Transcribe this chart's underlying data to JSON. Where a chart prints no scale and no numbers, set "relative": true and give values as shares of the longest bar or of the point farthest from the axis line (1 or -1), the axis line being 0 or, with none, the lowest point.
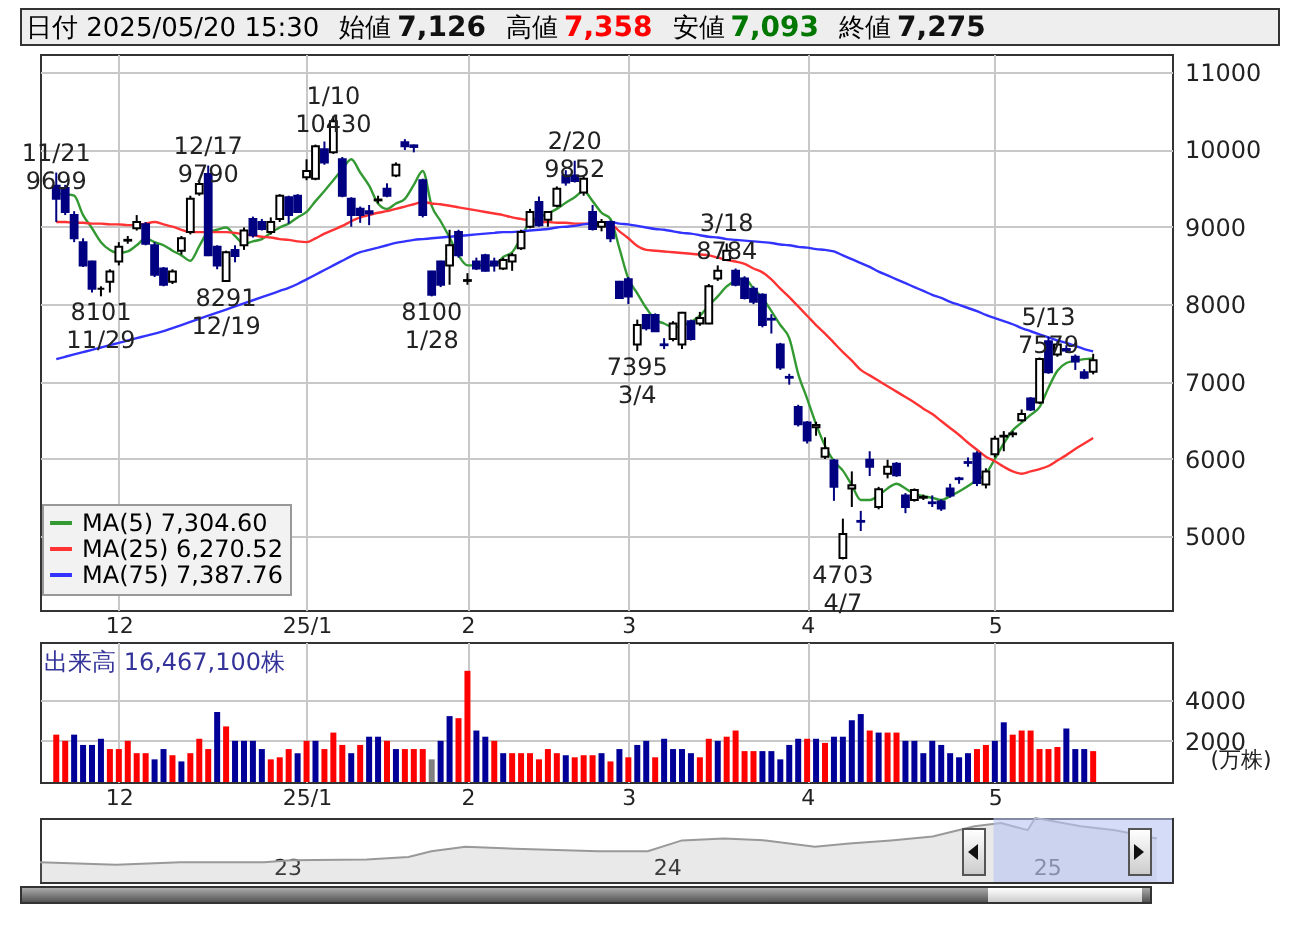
{
  "chart_data": [
    {
      "type": "candlestick",
      "title": "日付 2025/05/20 15:30",
      "annotations": [
        "始値 7,126",
        "高値 7,358",
        "安値 7,093",
        "終値 7,275",
        {
          "text": "11/21\n9699",
          "y": 9699
        },
        {
          "text": "8101\n11/29",
          "y": 8101
        },
        {
          "text": "12/17\n9790",
          "y": 9790
        },
        {
          "text": "8291\n12/19",
          "y": 8291
        },
        {
          "text": "1/10\n10430",
          "y": 10430
        },
        {
          "text": "8100\n1/28",
          "y": 8100
        },
        {
          "text": "2/20\n9852",
          "y": 9852
        },
        {
          "text": "7395\n3/4",
          "y": 7395
        },
        {
          "text": "3/18\n8784",
          "y": 8784
        },
        {
          "text": "4703\n4/7",
          "y": 4703
        },
        {
          "text": "5/13\n7579",
          "y": 7579
        }
      ],
      "categories": [
        null,
        null,
        null,
        null,
        null,
        null,
        null,
        "12",
        null,
        null,
        null,
        null,
        null,
        null,
        null,
        null,
        null,
        null,
        null,
        null,
        null,
        null,
        null,
        null,
        null,
        null,
        null,
        null,
        "25/1",
        null,
        null,
        null,
        null,
        null,
        null,
        null,
        null,
        null,
        null,
        null,
        null,
        null,
        null,
        null,
        null,
        null,
        "2",
        null,
        null,
        null,
        null,
        null,
        null,
        null,
        null,
        null,
        null,
        null,
        null,
        null,
        null,
        null,
        null,
        null,
        "3",
        null,
        null,
        null,
        null,
        null,
        null,
        null,
        null,
        null,
        null,
        null,
        null,
        null,
        null,
        null,
        null,
        null,
        null,
        null,
        "4",
        null,
        null,
        null,
        null,
        null,
        null,
        null,
        null,
        null,
        null,
        null,
        null,
        null,
        null,
        null,
        null,
        null,
        null,
        null,
        null,
        "5",
        null,
        null,
        null,
        null,
        null,
        null,
        null,
        null,
        null,
        null,
        null
      ],
      "ohlc": [
        [
          9530,
          9699,
          9060,
          9360
        ],
        [
          9500,
          9540,
          9150,
          9190
        ],
        [
          9150,
          9200,
          8800,
          8850
        ],
        [
          8800,
          8850,
          8480,
          8500
        ],
        [
          8550,
          8560,
          8150,
          8200
        ],
        [
          8200,
          8230,
          8101,
          8200
        ],
        [
          8290,
          8450,
          8150,
          8420
        ],
        [
          8550,
          8800,
          8500,
          8740
        ],
        [
          8820,
          8880,
          8780,
          8830
        ],
        [
          8980,
          9150,
          8950,
          9060
        ],
        [
          9030,
          9060,
          8760,
          8780
        ],
        [
          8760,
          8800,
          8350,
          8380
        ],
        [
          8460,
          8480,
          8230,
          8250
        ],
        [
          8290,
          8450,
          8260,
          8420
        ],
        [
          8690,
          8880,
          8640,
          8850
        ],
        [
          8930,
          9400,
          8900,
          9360
        ],
        [
          9430,
          9600,
          9400,
          9550
        ],
        [
          9680,
          9790,
          8620,
          8630
        ],
        [
          8740,
          8760,
          8450,
          8500
        ],
        [
          8300,
          8690,
          8291,
          8670
        ],
        [
          8700,
          8760,
          8540,
          8620
        ],
        [
          8760,
          8990,
          8700,
          8950
        ],
        [
          9100,
          9130,
          8860,
          8890
        ],
        [
          9060,
          9100,
          8950,
          8970
        ],
        [
          8930,
          9120,
          8900,
          9060
        ],
        [
          9100,
          9420,
          9060,
          9400
        ],
        [
          9380,
          9400,
          9040,
          9150
        ],
        [
          9400,
          9420,
          9180,
          9190
        ],
        [
          9640,
          9870,
          9600,
          9720
        ],
        [
          9620,
          10060,
          9600,
          10040
        ],
        [
          10000,
          10100,
          9800,
          9830
        ],
        [
          9960,
          10430,
          9940,
          10360
        ],
        [
          9870,
          9900,
          9380,
          9400
        ],
        [
          9360,
          9380,
          9000,
          9150
        ],
        [
          9230,
          9260,
          9050,
          9150
        ],
        [
          9200,
          9280,
          9020,
          9170
        ],
        [
          9340,
          9400,
          9300,
          9350
        ],
        [
          9490,
          9560,
          9380,
          9400
        ],
        [
          9660,
          9830,
          9640,
          9800
        ],
        [
          10090,
          10130,
          9990,
          10040
        ],
        [
          10050,
          10060,
          9960,
          10030
        ],
        [
          9600,
          9620,
          9120,
          9150
        ],
        [
          8420,
          8430,
          8100,
          8120
        ],
        [
          8550,
          8560,
          8220,
          8250
        ],
        [
          8500,
          8960,
          8250,
          8760
        ],
        [
          8930,
          8960,
          8600,
          8630
        ],
        [
          8300,
          8400,
          8250,
          8310
        ],
        [
          8550,
          8600,
          8440,
          8460
        ],
        [
          8630,
          8650,
          8420,
          8430
        ],
        [
          8550,
          8600,
          8420,
          8500
        ],
        [
          8460,
          8600,
          8440,
          8570
        ],
        [
          8550,
          8660,
          8430,
          8630
        ],
        [
          8720,
          8960,
          8700,
          8930
        ],
        [
          9000,
          9230,
          8980,
          9190
        ],
        [
          9320,
          9390,
          9000,
          9020
        ],
        [
          9090,
          9200,
          9000,
          9190
        ],
        [
          9270,
          9520,
          9250,
          9490
        ],
        [
          9660,
          9730,
          9530,
          9570
        ],
        [
          9660,
          9852,
          9570,
          9590
        ],
        [
          9440,
          9650,
          9400,
          9620
        ],
        [
          9190,
          9280,
          8950,
          8970
        ],
        [
          9000,
          9100,
          8940,
          9060
        ],
        [
          9060,
          9080,
          8800,
          8850
        ],
        [
          8290,
          8300,
          8080,
          8080
        ],
        [
          8320,
          8350,
          8000,
          8100
        ],
        [
          7480,
          7800,
          7395,
          7730
        ],
        [
          7860,
          7870,
          7660,
          7690
        ],
        [
          7860,
          7880,
          7640,
          7650
        ],
        [
          7480,
          7560,
          7420,
          7470
        ],
        [
          7550,
          7780,
          7520,
          7750
        ],
        [
          7480,
          7900,
          7420,
          7890
        ],
        [
          7780,
          7800,
          7530,
          7550
        ],
        [
          7750,
          7900,
          7720,
          7820
        ],
        [
          7750,
          8260,
          7740,
          8230
        ],
        [
          8330,
          8500,
          8300,
          8430
        ],
        [
          8570,
          8784,
          8560,
          8690
        ],
        [
          8430,
          8460,
          8230,
          8250
        ],
        [
          8330,
          8360,
          8060,
          8080
        ],
        [
          8200,
          8230,
          8000,
          8030
        ],
        [
          8120,
          8140,
          7700,
          7730
        ],
        [
          7810,
          7870,
          7620,
          7800
        ],
        [
          7480,
          7500,
          7150,
          7180
        ],
        [
          7060,
          7100,
          6960,
          7050
        ],
        [
          6670,
          6700,
          6420,
          6450
        ],
        [
          6470,
          6490,
          6200,
          6240
        ],
        [
          6410,
          6480,
          6300,
          6440
        ],
        [
          6030,
          6280,
          6000,
          6140
        ],
        [
          5980,
          6000,
          5460,
          5640
        ],
        [
          4720,
          5230,
          4703,
          5030
        ],
        [
          5620,
          5840,
          5380,
          5660
        ],
        [
          5200,
          5330,
          5070,
          5190
        ],
        [
          5990,
          6100,
          5780,
          5900
        ],
        [
          5380,
          5640,
          5350,
          5610
        ],
        [
          5810,
          5990,
          5750,
          5900
        ],
        [
          5940,
          5960,
          5770,
          5790
        ],
        [
          5530,
          5560,
          5300,
          5380
        ],
        [
          5470,
          5620,
          5450,
          5600
        ],
        [
          5500,
          5540,
          5470,
          5510
        ],
        [
          5440,
          5530,
          5380,
          5430
        ],
        [
          5450,
          5480,
          5330,
          5360
        ],
        [
          5620,
          5680,
          5500,
          5530
        ],
        [
          5750,
          5770,
          5680,
          5740
        ],
        [
          5960,
          6020,
          5900,
          5950
        ],
        [
          6070,
          6100,
          5650,
          5690
        ],
        [
          5670,
          5880,
          5620,
          5840
        ],
        [
          6060,
          6300,
          6020,
          6260
        ],
        [
          6290,
          6360,
          6100,
          6300
        ],
        [
          6320,
          6360,
          6280,
          6330
        ],
        [
          6500,
          6640,
          6480,
          6580
        ],
        [
          6780,
          6800,
          6620,
          6640
        ],
        [
          6730,
          7310,
          6710,
          7290
        ],
        [
          7520,
          7579,
          7100,
          7120
        ],
        [
          7350,
          7520,
          7320,
          7480
        ],
        [
          7420,
          7470,
          7370,
          7400
        ],
        [
          7320,
          7350,
          7150,
          7260
        ],
        [
          7120,
          7160,
          7030,
          7050
        ],
        [
          7126,
          7358,
          7093,
          7275
        ]
      ],
      "series": [
        {
          "name": "MA(5) 7,304.60",
          "color": "#339933",
          "type": "line",
          "values": [
            9430,
            9420,
            9400,
            9150,
            8980,
            8800,
            8700,
            8660,
            8680,
            8760,
            8850,
            8800,
            8760,
            8690,
            8630,
            8560,
            8750,
            8930,
            8960,
            8990,
            8880,
            8780,
            8810,
            8840,
            8920,
            8990,
            9040,
            9120,
            9190,
            9330,
            9460,
            9600,
            9740,
            9870,
            9700,
            9530,
            9300,
            9230,
            9300,
            9360,
            9540,
            9720,
            9270,
            9070,
            8860,
            8630,
            8500,
            8500,
            8500,
            8500,
            8610,
            8670,
            8860,
            9060,
            9120,
            9170,
            9230,
            9310,
            9380,
            9460,
            9330,
            9180,
            9100,
            8720,
            8330,
            8140,
            7950,
            7800,
            7750,
            7700,
            7720,
            7770,
            7850,
            7980,
            8100,
            8230,
            8300,
            8330,
            8200,
            8080,
            7910,
            7730,
            7560,
            7100,
            6780,
            6450,
            6170,
            5970,
            5850,
            5660,
            5470,
            5470,
            5530,
            5620,
            5680,
            5620,
            5550,
            5520,
            5500,
            5470,
            5520,
            5580,
            5650,
            5730,
            5810,
            6000,
            6200,
            6370,
            6470,
            6570,
            6670,
            6920,
            7140,
            7240,
            7270,
            7290,
            7300
          ]
        },
        {
          "name": "MA(25) 6,270.52",
          "color": "#ff3333",
          "type": "line",
          "values": [
            9060,
            9060,
            9050,
            9050,
            9040,
            9040,
            9030,
            9030,
            9020,
            9020,
            9040,
            9060,
            9030,
            9000,
            8960,
            8930,
            8930,
            8930,
            8930,
            8930,
            8920,
            8900,
            8890,
            8870,
            8860,
            8840,
            8830,
            8810,
            8800,
            8850,
            8910,
            8960,
            9010,
            9070,
            9120,
            9150,
            9180,
            9200,
            9230,
            9260,
            9290,
            9320,
            9300,
            9290,
            9270,
            9250,
            9230,
            9210,
            9190,
            9170,
            9150,
            9120,
            9100,
            9080,
            9060,
            9060,
            9050,
            9050,
            9040,
            9040,
            9040,
            9030,
            9030,
            8940,
            8850,
            8750,
            8700,
            8690,
            8680,
            8670,
            8660,
            8650,
            8640,
            8630,
            8600,
            8570,
            8550,
            8520,
            8460,
            8410,
            8320,
            8200,
            8090,
            7970,
            7850,
            7730,
            7620,
            7500,
            7380,
            7270,
            7150,
            7080,
            7010,
            6940,
            6870,
            6800,
            6730,
            6650,
            6580,
            6490,
            6400,
            6310,
            6210,
            6120,
            6030,
            5970,
            5900,
            5840,
            5810,
            5840,
            5870,
            5910,
            5980,
            6050,
            6130,
            6200,
            6270
          ]
        },
        {
          "name": "MA(75) 7,387.76",
          "color": "#3333ff",
          "type": "line",
          "values": [
            7290,
            7320,
            7350,
            7380,
            7410,
            7440,
            7470,
            7500,
            7530,
            7560,
            7590,
            7620,
            7650,
            7690,
            7730,
            7770,
            7810,
            7850,
            7890,
            7930,
            7970,
            8010,
            8050,
            8090,
            8130,
            8170,
            8210,
            8260,
            8320,
            8380,
            8440,
            8500,
            8560,
            8620,
            8670,
            8700,
            8730,
            8760,
            8790,
            8810,
            8830,
            8840,
            8850,
            8860,
            8870,
            8880,
            8890,
            8900,
            8910,
            8920,
            8930,
            8930,
            8940,
            8950,
            8960,
            8970,
            8990,
            9000,
            9010,
            9030,
            9040,
            9050,
            9060,
            9040,
            9030,
            9010,
            8990,
            8970,
            8960,
            8940,
            8920,
            8910,
            8890,
            8870,
            8860,
            8840,
            8830,
            8820,
            8810,
            8800,
            8790,
            8770,
            8760,
            8740,
            8730,
            8710,
            8700,
            8680,
            8630,
            8580,
            8530,
            8480,
            8420,
            8370,
            8320,
            8270,
            8220,
            8170,
            8120,
            8080,
            8030,
            7990,
            7950,
            7910,
            7860,
            7820,
            7780,
            7740,
            7690,
            7650,
            7610,
            7570,
            7530,
            7500,
            7460,
            7420,
            7390
          ]
        }
      ],
      "ylim": [
        4050,
        11230
      ],
      "yticks": [
        5000,
        6000,
        7000,
        8000,
        9000,
        10000,
        11000
      ],
      "grid": true,
      "legend": "bottom left"
    },
    {
      "type": "bar",
      "title": "出来高 16,467,100株",
      "ylabel": "(万株)",
      "categories": [
        null,
        null,
        null,
        null,
        null,
        null,
        null,
        "12",
        null,
        null,
        null,
        null,
        null,
        null,
        null,
        null,
        null,
        null,
        null,
        null,
        null,
        null,
        null,
        null,
        null,
        null,
        null,
        null,
        "25/1",
        null,
        null,
        null,
        null,
        null,
        null,
        null,
        null,
        null,
        null,
        null,
        null,
        null,
        null,
        null,
        null,
        null,
        "2",
        null,
        null,
        null,
        null,
        null,
        null,
        null,
        null,
        null,
        null,
        null,
        null,
        null,
        null,
        null,
        null,
        null,
        "3",
        null,
        null,
        null,
        null,
        null,
        null,
        null,
        null,
        null,
        null,
        null,
        null,
        null,
        null,
        null,
        null,
        null,
        null,
        null,
        "4",
        null,
        null,
        null,
        null,
        null,
        null,
        null,
        null,
        null,
        null,
        null,
        null,
        null,
        null,
        null,
        null,
        null,
        null,
        null,
        null,
        "5",
        null,
        null,
        null,
        null,
        null,
        null,
        null,
        null,
        null,
        null,
        null
      ],
      "values": [
        2300,
        2000,
        2300,
        1800,
        1800,
        2100,
        1600,
        1600,
        2000,
        1400,
        1400,
        1100,
        1600,
        1300,
        1000,
        1400,
        2100,
        1600,
        3400,
        2700,
        2000,
        2000,
        2000,
        1600,
        1100,
        1200,
        1600,
        1400,
        2000,
        2000,
        1600,
        2400,
        1800,
        1400,
        1800,
        2200,
        2200,
        2000,
        1600,
        1600,
        1600,
        1600,
        1100,
        2000,
        3200,
        3100,
        5400,
        2500,
        2200,
        2000,
        1400,
        1400,
        1400,
        1400,
        1100,
        1600,
        1400,
        1300,
        1200,
        1300,
        1300,
        1400,
        1000,
        1600,
        1200,
        1800,
        2000,
        1200,
        2100,
        1600,
        1600,
        1400,
        1200,
        2100,
        2000,
        2200,
        2500,
        1500,
        1500,
        1500,
        1500,
        1100,
        1800,
        2100,
        2100,
        2100,
        1900,
        2200,
        2200,
        3000,
        3300,
        2500,
        2400,
        2400,
        2400,
        2000,
        2000,
        1400,
        2000,
        1800,
        1400,
        1200,
        1400,
        1600,
        1800,
        2000,
        2900,
        2300,
        2500,
        2500,
        1600,
        1600,
        1700,
        2600,
        1600,
        1600,
        1500
      ],
      "colors": [
        "#ff0000",
        "#ff0000",
        "#000099",
        "#000099",
        "#000099",
        "#000099",
        "#ff0000",
        "#ff0000",
        "#ff0000",
        "#ff0000",
        "#ff0000",
        "#000099",
        "#000099",
        "#ff0000",
        "#000099",
        "#ff0000",
        "#ff0000",
        "#ff0000",
        "#000099",
        "#ff0000",
        "#000099",
        "#000099",
        "#000099",
        "#000099",
        "#ff0000",
        "#ff0000",
        "#ff0000",
        "#000099",
        "#ff0000",
        "#000099",
        "#ff0000",
        "#ff0000",
        "#ff0000",
        "#000099",
        "#ff0000",
        "#000099",
        "#000099",
        "#ff0000",
        "#000099",
        "#ff0000",
        "#ff0000",
        "#ff0000",
        "#808080",
        "#000099",
        "#000099",
        "#ff0000",
        "#ff0000",
        "#000099",
        "#000099",
        "#ff0000",
        "#000099",
        "#ff0000",
        "#ff0000",
        "#ff0000",
        "#ff0000",
        "#ff0000",
        "#ff0000",
        "#000099",
        "#ff0000",
        "#ff0000",
        "#ff0000",
        "#000099",
        "#ff0000",
        "#000099",
        "#ff0000",
        "#000099",
        "#000099",
        "#ff0000",
        "#000099",
        "#000099",
        "#000099",
        "#000099",
        "#ff0000",
        "#ff0000",
        "#000099",
        "#ff0000",
        "#ff0000",
        "#ff0000",
        "#ff0000",
        "#000099",
        "#000099",
        "#000099",
        "#000099",
        "#000099",
        "#ff0000",
        "#000099",
        "#ff0000",
        "#000099",
        "#000099",
        "#000099",
        "#000099",
        "#ff0000",
        "#000099",
        "#ff0000",
        "#ff0000",
        "#000099",
        "#000099",
        "#000099",
        "#000099",
        "#000099",
        "#000099",
        "#000099",
        "#000099",
        "#ff0000",
        "#ff0000",
        "#000099",
        "#000099",
        "#ff0000",
        "#ff0000",
        "#ff0000",
        "#ff0000",
        "#ff0000",
        "#ff0000",
        "#000099",
        "#000099",
        "#000099",
        "#ff0000"
      ],
      "ylim": [
        0,
        6800
      ],
      "yticks": [
        2000,
        4000
      ],
      "grid": true
    },
    {
      "type": "area",
      "relative": true,
      "color": "#999999",
      "x": [
        2022.35,
        2022.55,
        2022.72,
        2022.94,
        2023.01,
        2023.21,
        2023.32,
        2023.38,
        2023.47,
        2023.6,
        2023.82,
        2023.95,
        2024.04,
        2024.15,
        2024.26,
        2024.39,
        2024.48,
        2024.59,
        2024.7,
        2024.81,
        2024.88,
        2024.95,
        2024.97,
        2025.09,
        2025.18,
        2025.29
      ],
      "values": [
        0.31,
        0.27,
        0.31,
        0.31,
        0.34,
        0.35,
        0.39,
        0.48,
        0.55,
        0.52,
        0.48,
        0.48,
        0.65,
        0.68,
        0.65,
        0.55,
        0.6,
        0.65,
        0.71,
        0.87,
        0.92,
        0.81,
        1,
        0.87,
        0.81,
        0.68
      ],
      "xlim": [
        2022.35,
        2025.33
      ],
      "xticks": [
        {
          "value": 2023,
          "label": "23"
        },
        {
          "value": 2024,
          "label": "24"
        },
        {
          "value": 2025,
          "label": "25"
        }
      ],
      "bands": [
        {
          "axis": "x",
          "from": 2024.86,
          "to": 2025.33,
          "color": "#b8c4f2"
        }
      ]
    }
  ]
}
